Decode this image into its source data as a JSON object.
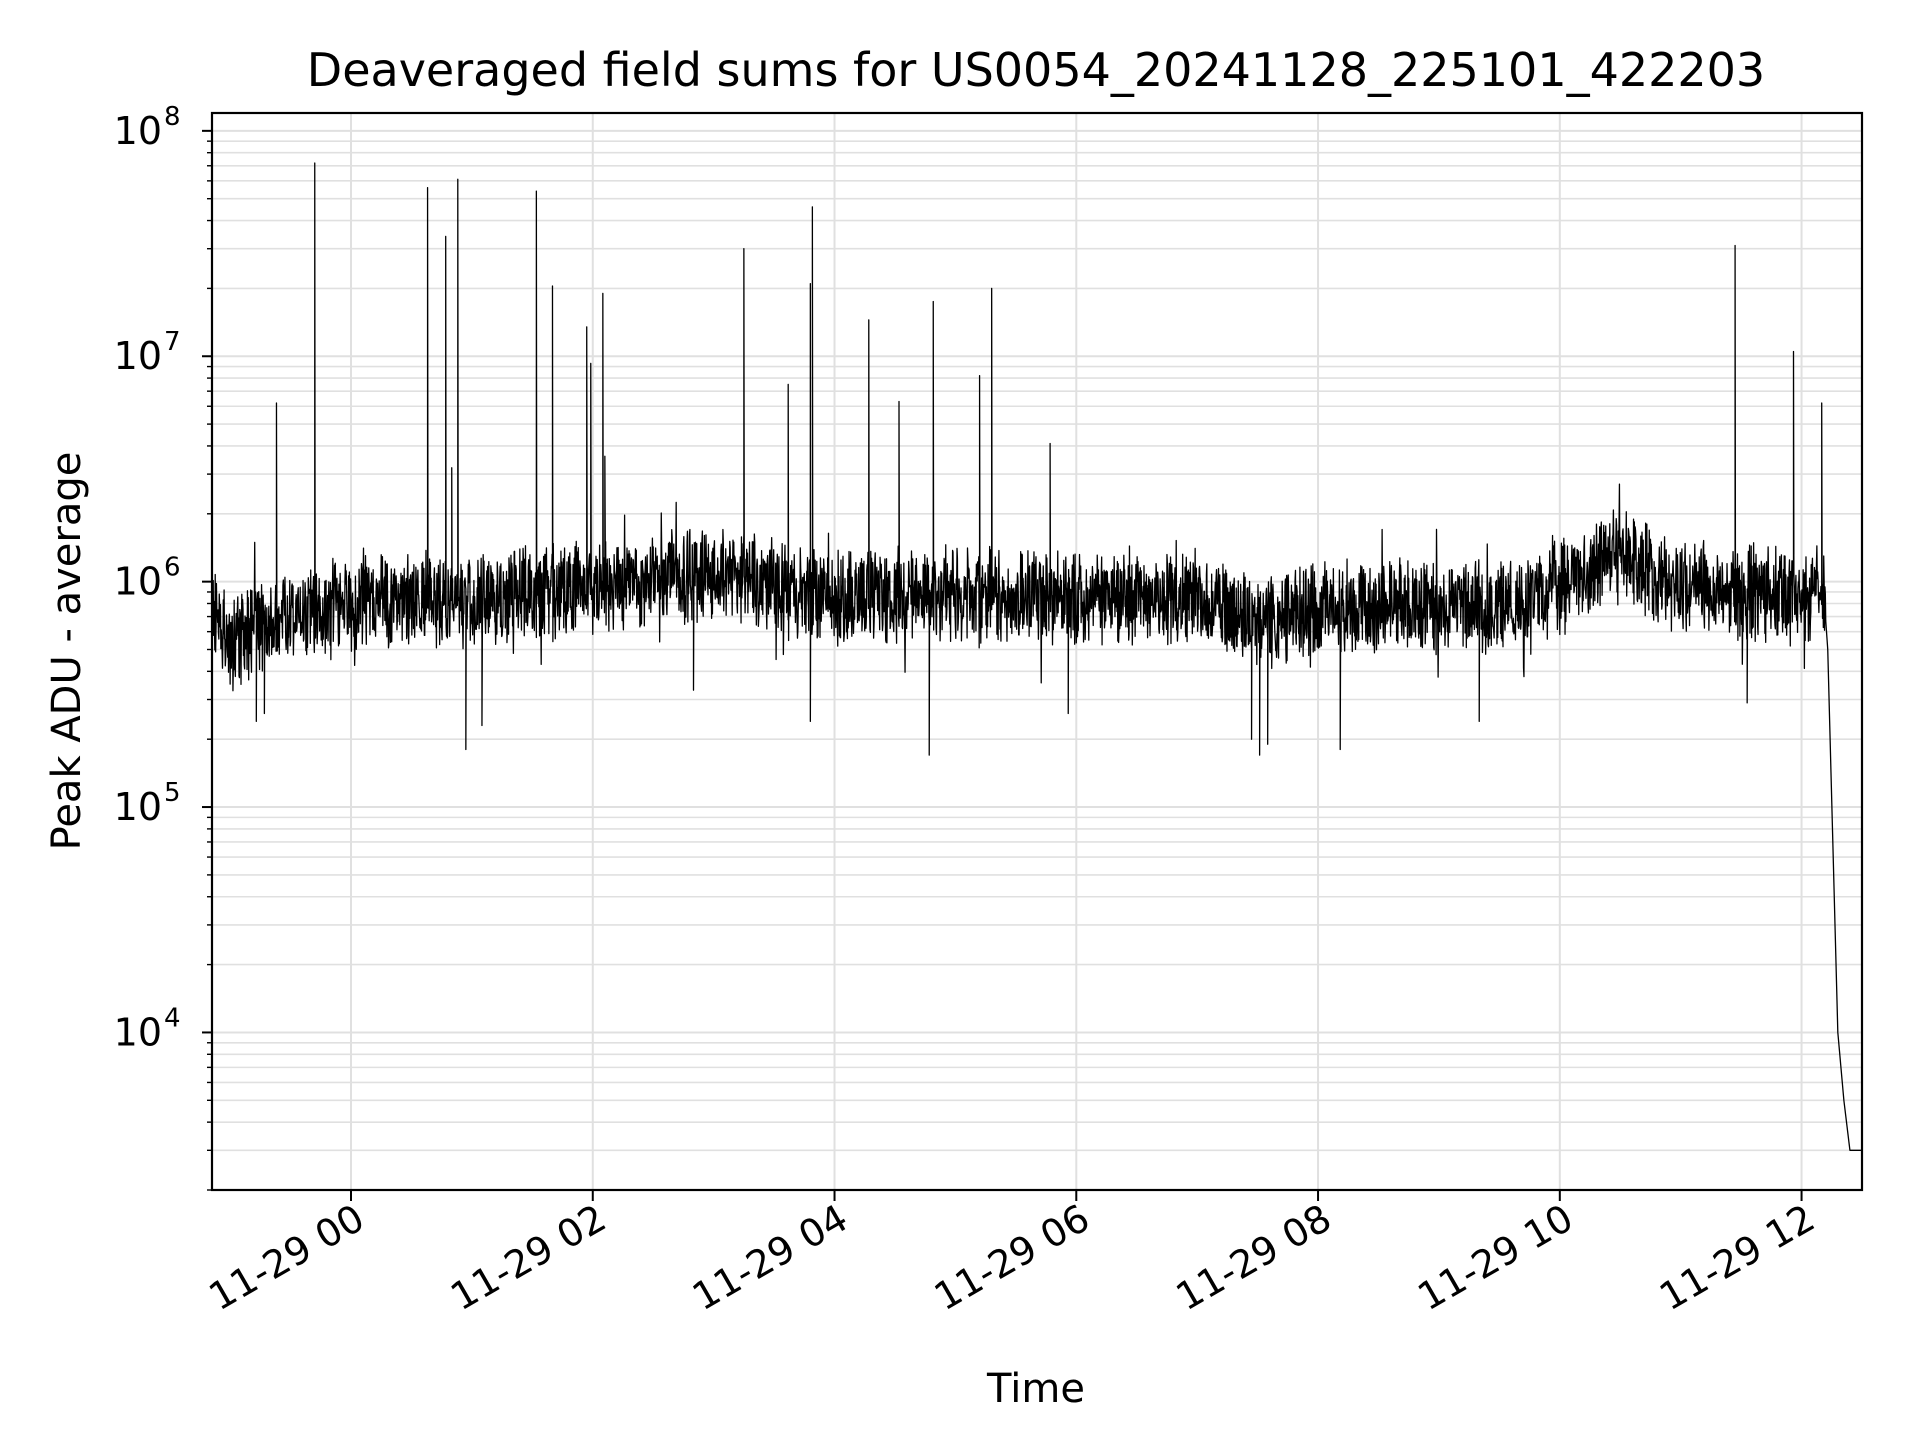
{
  "chart_data": {
    "type": "line",
    "title": "Deaveraged field sums for US0054_20241128_225101_422203",
    "xlabel": "Time",
    "ylabel": "Peak ADU - average",
    "yscale": "log",
    "ylim": [
      2000,
      120000000
    ],
    "xlim": [
      "2024-11-28 22:51",
      "2024-11-29 12:30"
    ],
    "grid": true,
    "line_color": "#000000",
    "grid_color": "#e0e0e0",
    "x_ticks": [
      {
        "value": "2024-11-29 00:00",
        "label": "11-29 00"
      },
      {
        "value": "2024-11-29 02:00",
        "label": "11-29 02"
      },
      {
        "value": "2024-11-29 04:00",
        "label": "11-29 04"
      },
      {
        "value": "2024-11-29 06:00",
        "label": "11-29 06"
      },
      {
        "value": "2024-11-29 08:00",
        "label": "11-29 08"
      },
      {
        "value": "2024-11-29 10:00",
        "label": "11-29 10"
      },
      {
        "value": "2024-11-29 12:00",
        "label": "11-29 12"
      }
    ],
    "y_ticks": [
      {
        "value": 10000,
        "base": "10",
        "exp": "4"
      },
      {
        "value": 100000,
        "base": "10",
        "exp": "5"
      },
      {
        "value": 1000000,
        "base": "10",
        "exp": "6"
      },
      {
        "value": 10000000,
        "base": "10",
        "exp": "7"
      },
      {
        "value": 100000000,
        "base": "10",
        "exp": "8"
      }
    ],
    "series": [
      {
        "baseline": [
          {
            "x": "2024-11-28 22:51",
            "y": 800000
          },
          {
            "x": "2024-11-28 23:00",
            "y": 520000
          },
          {
            "x": "2024-11-28 23:20",
            "y": 700000
          },
          {
            "x": "2024-11-29 00:00",
            "y": 780000
          },
          {
            "x": "2024-11-29 00:30",
            "y": 850000
          },
          {
            "x": "2024-11-29 01:00",
            "y": 800000
          },
          {
            "x": "2024-11-29 01:30",
            "y": 900000
          },
          {
            "x": "2024-11-29 02:00",
            "y": 950000
          },
          {
            "x": "2024-11-29 03:00",
            "y": 1100000
          },
          {
            "x": "2024-11-29 03:30",
            "y": 950000
          },
          {
            "x": "2024-11-29 04:00",
            "y": 850000
          },
          {
            "x": "2024-11-29 05:00",
            "y": 880000
          },
          {
            "x": "2024-11-29 06:00",
            "y": 850000
          },
          {
            "x": "2024-11-29 07:00",
            "y": 850000
          },
          {
            "x": "2024-11-29 07:30",
            "y": 650000
          },
          {
            "x": "2024-11-29 08:00",
            "y": 750000
          },
          {
            "x": "2024-11-29 09:00",
            "y": 800000
          },
          {
            "x": "2024-11-29 09:30",
            "y": 750000
          },
          {
            "x": "2024-11-29 10:00",
            "y": 950000
          },
          {
            "x": "2024-11-29 10:30",
            "y": 1350000
          },
          {
            "x": "2024-11-29 11:00",
            "y": 950000
          },
          {
            "x": "2024-11-29 12:00",
            "y": 850000
          },
          {
            "x": "2024-11-29 12:11",
            "y": 900000
          },
          {
            "x": "2024-11-29 12:13",
            "y": 500000
          },
          {
            "x": "2024-11-29 12:18",
            "y": 10000
          },
          {
            "x": "2024-11-29 12:21",
            "y": 5000
          },
          {
            "x": "2024-11-29 12:24",
            "y": 3000
          }
        ],
        "spikes": [
          {
            "x": "2024-11-28 23:23",
            "y": 6200000
          },
          {
            "x": "2024-11-28 23:42",
            "y": 72000000
          },
          {
            "x": "2024-11-29 00:38",
            "y": 56000000
          },
          {
            "x": "2024-11-29 00:47",
            "y": 34000000
          },
          {
            "x": "2024-11-29 00:50",
            "y": 3200000
          },
          {
            "x": "2024-11-29 00:53",
            "y": 61000000
          },
          {
            "x": "2024-11-29 01:32",
            "y": 54000000
          },
          {
            "x": "2024-11-29 01:40",
            "y": 20500000
          },
          {
            "x": "2024-11-29 01:57",
            "y": 13500000
          },
          {
            "x": "2024-11-29 01:59",
            "y": 9300000
          },
          {
            "x": "2024-11-29 02:05",
            "y": 19000000
          },
          {
            "x": "2024-11-29 02:06",
            "y": 3600000
          },
          {
            "x": "2024-11-29 03:15",
            "y": 30000000
          },
          {
            "x": "2024-11-29 03:37",
            "y": 7500000
          },
          {
            "x": "2024-11-29 03:48",
            "y": 21000000
          },
          {
            "x": "2024-11-29 03:49",
            "y": 46000000
          },
          {
            "x": "2024-11-29 04:17",
            "y": 14500000
          },
          {
            "x": "2024-11-29 04:32",
            "y": 6300000
          },
          {
            "x": "2024-11-29 04:49",
            "y": 17500000
          },
          {
            "x": "2024-11-29 05:12",
            "y": 8200000
          },
          {
            "x": "2024-11-29 05:18",
            "y": 20000000
          },
          {
            "x": "2024-11-29 05:47",
            "y": 4100000
          },
          {
            "x": "2024-11-29 11:27",
            "y": 31000000
          },
          {
            "x": "2024-11-29 11:56",
            "y": 10500000
          },
          {
            "x": "2024-11-29 12:10",
            "y": 6200000
          }
        ],
        "dips": [
          {
            "x": "2024-11-28 23:13",
            "y": 240000
          },
          {
            "x": "2024-11-28 23:17",
            "y": 260000
          },
          {
            "x": "2024-11-29 00:57",
            "y": 180000
          },
          {
            "x": "2024-11-29 01:05",
            "y": 230000
          },
          {
            "x": "2024-11-29 02:50",
            "y": 330000
          },
          {
            "x": "2024-11-29 03:48",
            "y": 240000
          },
          {
            "x": "2024-11-29 04:47",
            "y": 170000
          },
          {
            "x": "2024-11-29 05:56",
            "y": 260000
          },
          {
            "x": "2024-11-29 07:27",
            "y": 200000
          },
          {
            "x": "2024-11-29 07:31",
            "y": 170000
          },
          {
            "x": "2024-11-29 07:35",
            "y": 190000
          },
          {
            "x": "2024-11-29 08:11",
            "y": 180000
          },
          {
            "x": "2024-11-29 09:20",
            "y": 240000
          },
          {
            "x": "2024-11-29 11:33",
            "y": 290000
          }
        ]
      }
    ]
  }
}
